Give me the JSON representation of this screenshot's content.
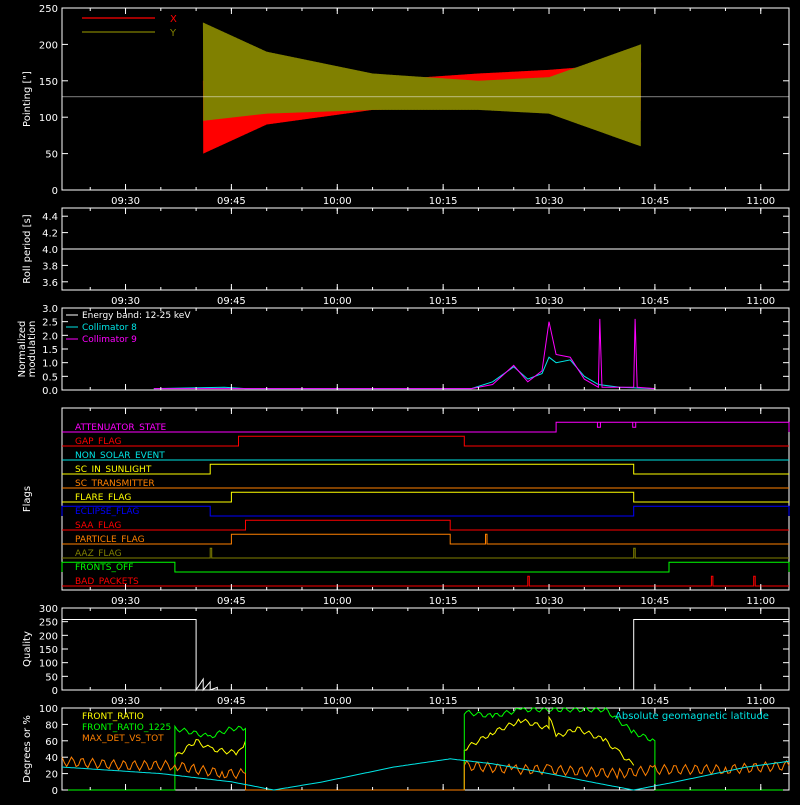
{
  "colors": {
    "background": "#000000",
    "axis": "#ffffff",
    "x_series": "#ff0000",
    "y_series": "#808000",
    "white": "#ffffff",
    "cyan": "#00e5e5",
    "magenta": "#ff00ff",
    "green": "#00ff00",
    "yellow": "#ffff00",
    "orange": "#ff8000",
    "blue": "#0000ff",
    "red": "#ff0000",
    "olive": "#808000"
  },
  "chart_data": [
    {
      "id": "pointing",
      "type": "line",
      "ylabel": "Pointing [\"]",
      "xlim": [
        "09:21",
        "11:04"
      ],
      "ylim": [
        0,
        250
      ],
      "yticks": [
        0,
        50,
        100,
        150,
        200,
        250
      ],
      "xticks": [
        "09:30",
        "09:45",
        "10:00",
        "10:15",
        "10:30",
        "10:45",
        "11:00"
      ],
      "legend": [
        {
          "name": "X",
          "color": "#ff0000"
        },
        {
          "name": "Y",
          "color": "#808000"
        }
      ],
      "reference_line": 128,
      "series": [
        {
          "name": "X",
          "color": "#ff0000",
          "band_start": "09:41",
          "band_end": "10:43",
          "envelope": [
            {
              "t": "09:41",
              "lo": 50,
              "hi": 150
            },
            {
              "t": "09:50",
              "lo": 90,
              "hi": 145
            },
            {
              "t": "10:05",
              "lo": 110,
              "hi": 150
            },
            {
              "t": "10:20",
              "lo": 115,
              "hi": 160
            },
            {
              "t": "10:30",
              "lo": 120,
              "hi": 165
            },
            {
              "t": "10:43",
              "lo": 95,
              "hi": 175
            }
          ]
        },
        {
          "name": "Y",
          "color": "#808000",
          "band_start": "09:41",
          "band_end": "10:43",
          "envelope": [
            {
              "t": "09:41",
              "lo": 95,
              "hi": 230
            },
            {
              "t": "09:50",
              "lo": 105,
              "hi": 190
            },
            {
              "t": "10:05",
              "lo": 110,
              "hi": 160
            },
            {
              "t": "10:20",
              "lo": 110,
              "hi": 150
            },
            {
              "t": "10:30",
              "lo": 105,
              "hi": 155
            },
            {
              "t": "10:43",
              "lo": 60,
              "hi": 200
            }
          ]
        }
      ]
    },
    {
      "id": "roll",
      "type": "line",
      "ylabel": "Roll period [s]",
      "xlim": [
        "09:21",
        "11:04"
      ],
      "ylim": [
        3.5,
        4.5
      ],
      "yticks": [
        "3.6",
        "3.8",
        "4.0",
        "4.2",
        "4.4"
      ],
      "xticks": [
        "09:30",
        "09:45",
        "10:00",
        "10:15",
        "10:30",
        "10:45",
        "11:00"
      ],
      "series": [
        {
          "name": "",
          "color": "#ffffff",
          "value": 4.0
        }
      ]
    },
    {
      "id": "modulation",
      "type": "line",
      "ylabel": [
        "Normalized",
        "modulation"
      ],
      "xlim": [
        "09:21",
        "11:04"
      ],
      "ylim": [
        0,
        3.0
      ],
      "yticks": [
        "0.0",
        "0.5",
        "1.0",
        "1.5",
        "2.0",
        "2.5",
        "3.0"
      ],
      "legend": [
        {
          "name": "Energy band: 12-25 keV",
          "color": "#ffffff"
        },
        {
          "name": "Collimator 8",
          "color": "#00e5e5"
        },
        {
          "name": "Collimator 9",
          "color": "#ff00ff"
        }
      ],
      "series": [
        {
          "name": "Collimator 8",
          "color": "#00e5e5",
          "points": [
            [
              "09:34",
              0.05
            ],
            [
              "09:44",
              0.1
            ],
            [
              "09:47",
              0.05
            ],
            [
              "10:19",
              0.05
            ],
            [
              "10:22",
              0.3
            ],
            [
              "10:25",
              0.85
            ],
            [
              "10:27",
              0.4
            ],
            [
              "10:29",
              0.6
            ],
            [
              "10:30",
              1.2
            ],
            [
              "10:31",
              1.0
            ],
            [
              "10:33",
              1.1
            ],
            [
              "10:35",
              0.5
            ],
            [
              "10:37",
              0.2
            ],
            [
              "10:40",
              0.1
            ],
            [
              "10:45",
              0.05
            ]
          ]
        },
        {
          "name": "Collimator 9",
          "color": "#ff00ff",
          "points": [
            [
              "09:34",
              0.05
            ],
            [
              "09:47",
              0.05
            ],
            [
              "10:19",
              0.05
            ],
            [
              "10:22",
              0.2
            ],
            [
              "10:25",
              0.9
            ],
            [
              "10:27",
              0.3
            ],
            [
              "10:29",
              0.7
            ],
            [
              "10:30",
              2.5
            ],
            [
              "10:31",
              1.3
            ],
            [
              "10:33",
              1.2
            ],
            [
              "10:35",
              0.4
            ],
            [
              "10:37",
              0.1
            ],
            [
              "10:37.2",
              2.6
            ],
            [
              "10:37.5",
              0.1
            ],
            [
              "10:42",
              0.1
            ],
            [
              "10:42.2",
              2.6
            ],
            [
              "10:42.5",
              0.1
            ],
            [
              "10:45",
              0.05
            ]
          ]
        }
      ]
    },
    {
      "id": "flags",
      "type": "line",
      "ylabel": "Flags",
      "xlim": [
        "09:21",
        "11:04"
      ],
      "xticks": [
        "09:30",
        "09:45",
        "10:00",
        "10:15",
        "10:30",
        "10:45",
        "11:00"
      ],
      "series": [
        {
          "name": "ATTENUATOR_STATE",
          "color": "#ff00ff",
          "on": [
            [
              "10:31",
              "11:04"
            ]
          ],
          "dips": [
            "10:37",
            "10:42"
          ]
        },
        {
          "name": "GAP_FLAG",
          "color": "#ff0000",
          "on": [
            [
              "09:46",
              "10:18"
            ]
          ]
        },
        {
          "name": "NON_SOLAR_EVENT",
          "color": "#00e5e5",
          "on": []
        },
        {
          "name": "SC_IN_SUNLIGHT",
          "color": "#ffff00",
          "on": [
            [
              "09:42",
              "10:42"
            ]
          ]
        },
        {
          "name": "SC_TRANSMITTER",
          "color": "#ff8000",
          "on": []
        },
        {
          "name": "FLARE_FLAG",
          "color": "#ffff00",
          "on": [
            [
              "09:45",
              "10:42"
            ]
          ]
        },
        {
          "name": "ECLIPSE_FLAG",
          "color": "#0000ff",
          "on": [
            [
              "09:21",
              "09:42"
            ],
            [
              "10:42",
              "11:04"
            ]
          ]
        },
        {
          "name": "SAA_FLAG",
          "color": "#ff0000",
          "on": [
            [
              "09:47",
              "10:16"
            ]
          ]
        },
        {
          "name": "PARTICLE_FLAG",
          "color": "#ff8000",
          "on": [
            [
              "09:45",
              "10:16"
            ],
            [
              "10:21",
              "10:21"
            ]
          ]
        },
        {
          "name": "AAZ_FLAG",
          "color": "#808000",
          "on": [
            [
              "09:42",
              "09:42"
            ],
            [
              "10:42",
              "10:42"
            ]
          ]
        },
        {
          "name": "FRONTS_OFF",
          "color": "#00ff00",
          "on": [
            [
              "09:21",
              "09:37"
            ],
            [
              "10:47",
              "11:04"
            ]
          ]
        },
        {
          "name": "BAD_PACKETS",
          "color": "#ff0000",
          "on": [
            [
              "10:27",
              "10:27"
            ],
            [
              "10:53",
              "10:53"
            ],
            [
              "10:59",
              "10:59"
            ]
          ]
        }
      ]
    },
    {
      "id": "quality",
      "type": "line",
      "ylabel": "Quality",
      "xlim": [
        "09:21",
        "11:04"
      ],
      "ylim": [
        0,
        300
      ],
      "yticks": [
        0,
        50,
        100,
        150,
        200,
        250,
        300
      ],
      "xticks": [
        "09:30",
        "09:45",
        "10:00",
        "10:15",
        "10:30",
        "10:45",
        "11:00"
      ],
      "series": [
        {
          "name": "",
          "color": "#ffffff",
          "points": [
            [
              "09:21",
              258
            ],
            [
              "09:40",
              258
            ],
            [
              "09:40",
              0
            ],
            [
              "09:41",
              40
            ],
            [
              "09:41",
              0
            ],
            [
              "09:42",
              30
            ],
            [
              "09:42",
              0
            ],
            [
              "09:43",
              10
            ],
            [
              "09:43",
              0
            ],
            [
              "10:42",
              0
            ],
            [
              "10:42",
              258
            ],
            [
              "11:04",
              258
            ]
          ]
        }
      ]
    },
    {
      "id": "geomagnetic",
      "type": "line",
      "ylabel": "Degrees or %",
      "xlim": [
        "09:21",
        "11:04"
      ],
      "ylim": [
        0,
        100
      ],
      "yticks": [
        0,
        20,
        40,
        60,
        80,
        100
      ],
      "legend": [
        {
          "name": "FRONT_RATIO",
          "color": "#ffff00"
        },
        {
          "name": "FRONT_RATIO_1225",
          "color": "#00ff00"
        },
        {
          "name": "MAX_DET_VS_TOT",
          "color": "#ff8000"
        }
      ],
      "annotation": {
        "text": "Absolute geomagnetic latitude",
        "color": "#00e5e5"
      },
      "series": [
        {
          "name": "FRONT_RATIO",
          "color": "#ffff00",
          "points": [
            [
              "09:37",
              40
            ],
            [
              "09:40",
              60
            ],
            [
              "09:42",
              50
            ],
            [
              "09:46",
              45
            ],
            [
              "09:47",
              60
            ],
            [
              "09:47",
              0
            ],
            [
              "10:18",
              0
            ],
            [
              "10:18",
              50
            ],
            [
              "10:22",
              70
            ],
            [
              "10:26",
              85
            ],
            [
              "10:30",
              75
            ],
            [
              "10:30",
              90
            ],
            [
              "10:31",
              65
            ],
            [
              "10:34",
              75
            ],
            [
              "10:38",
              60
            ],
            [
              "10:40",
              45
            ],
            [
              "10:42",
              30
            ]
          ]
        },
        {
          "name": "FRONT_RATIO_1225",
          "color": "#00ff00",
          "points": [
            [
              "09:21",
              0
            ],
            [
              "09:37",
              0
            ],
            [
              "09:37",
              75
            ],
            [
              "09:42",
              65
            ],
            [
              "09:45",
              75
            ],
            [
              "09:47",
              75
            ],
            [
              "09:47",
              0
            ],
            [
              "10:18",
              0
            ],
            [
              "10:18",
              95
            ],
            [
              "10:22",
              90
            ],
            [
              "10:26",
              98
            ],
            [
              "10:32",
              98
            ],
            [
              "10:38",
              98
            ],
            [
              "10:42",
              70
            ],
            [
              "10:45",
              60
            ],
            [
              "10:45",
              0
            ],
            [
              "11:04",
              0
            ]
          ]
        },
        {
          "name": "MAX_DET_VS_TOT",
          "color": "#ff8000",
          "points": [
            [
              "09:21",
              35
            ],
            [
              "09:30",
              30
            ],
            [
              "09:37",
              30
            ],
            [
              "09:40",
              25
            ],
            [
              "09:44",
              20
            ],
            [
              "09:47",
              20
            ],
            [
              "09:47",
              0
            ],
            [
              "10:18",
              0
            ],
            [
              "10:18",
              30
            ],
            [
              "10:25",
              25
            ],
            [
              "10:30",
              25
            ],
            [
              "10:40",
              20
            ],
            [
              "10:45",
              25
            ],
            [
              "10:55",
              25
            ],
            [
              "11:04",
              30
            ]
          ]
        },
        {
          "name": "Absolute geomagnetic latitude",
          "color": "#00e5e5",
          "points": [
            [
              "09:21",
              28
            ],
            [
              "09:35",
              20
            ],
            [
              "09:45",
              10
            ],
            [
              "09:51",
              0
            ],
            [
              "09:58",
              10
            ],
            [
              "10:08",
              28
            ],
            [
              "10:16",
              38
            ],
            [
              "10:22",
              32
            ],
            [
              "10:30",
              20
            ],
            [
              "10:37",
              8
            ],
            [
              "10:42",
              0
            ],
            [
              "10:48",
              10
            ],
            [
              "10:58",
              28
            ],
            [
              "11:04",
              35
            ]
          ]
        }
      ]
    }
  ]
}
